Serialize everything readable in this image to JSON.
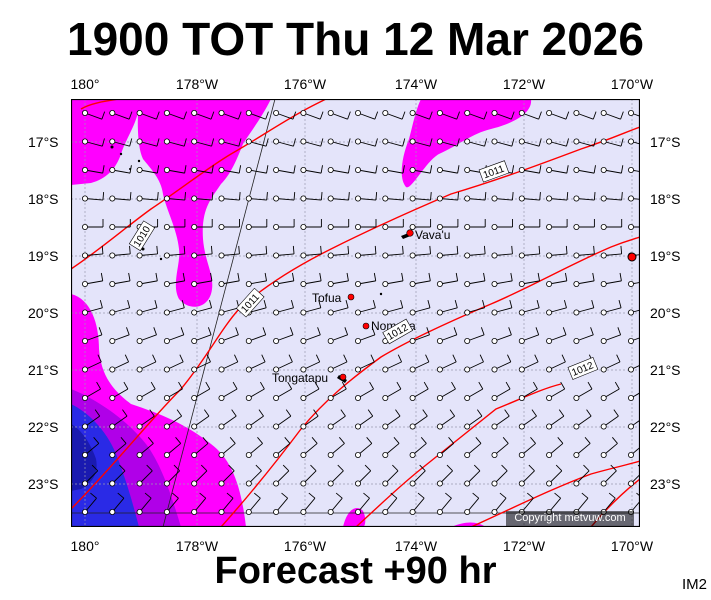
{
  "header": {
    "title": "1900 TOT Thu 12 Mar 2026"
  },
  "footer": {
    "forecast": "Forecast +90 hr",
    "code": "IM2"
  },
  "map": {
    "lon_ticks": [
      "180°",
      "178°W",
      "176°W",
      "174°W",
      "172°W",
      "170°W"
    ],
    "lat_ticks": [
      "17°S",
      "18°S",
      "19°S",
      "20°S",
      "21°S",
      "22°S",
      "23°S"
    ],
    "isobar_labels": [
      "1010",
      "1011",
      "1011",
      "1012",
      "1012"
    ],
    "places": [
      {
        "name": "Vava'u"
      },
      {
        "name": "Tofua"
      },
      {
        "name": "Nomuka"
      },
      {
        "name": "Tongatapu"
      }
    ],
    "copyright": "Copyright metvuw.com",
    "colors": {
      "background": "#e4e4fa",
      "rain_light": "#ff00ff",
      "rain_heavy": "#2a2ae6",
      "isobar": "#ff0000",
      "wind_barb": "#000000",
      "place_marker": "#ff0000"
    }
  }
}
